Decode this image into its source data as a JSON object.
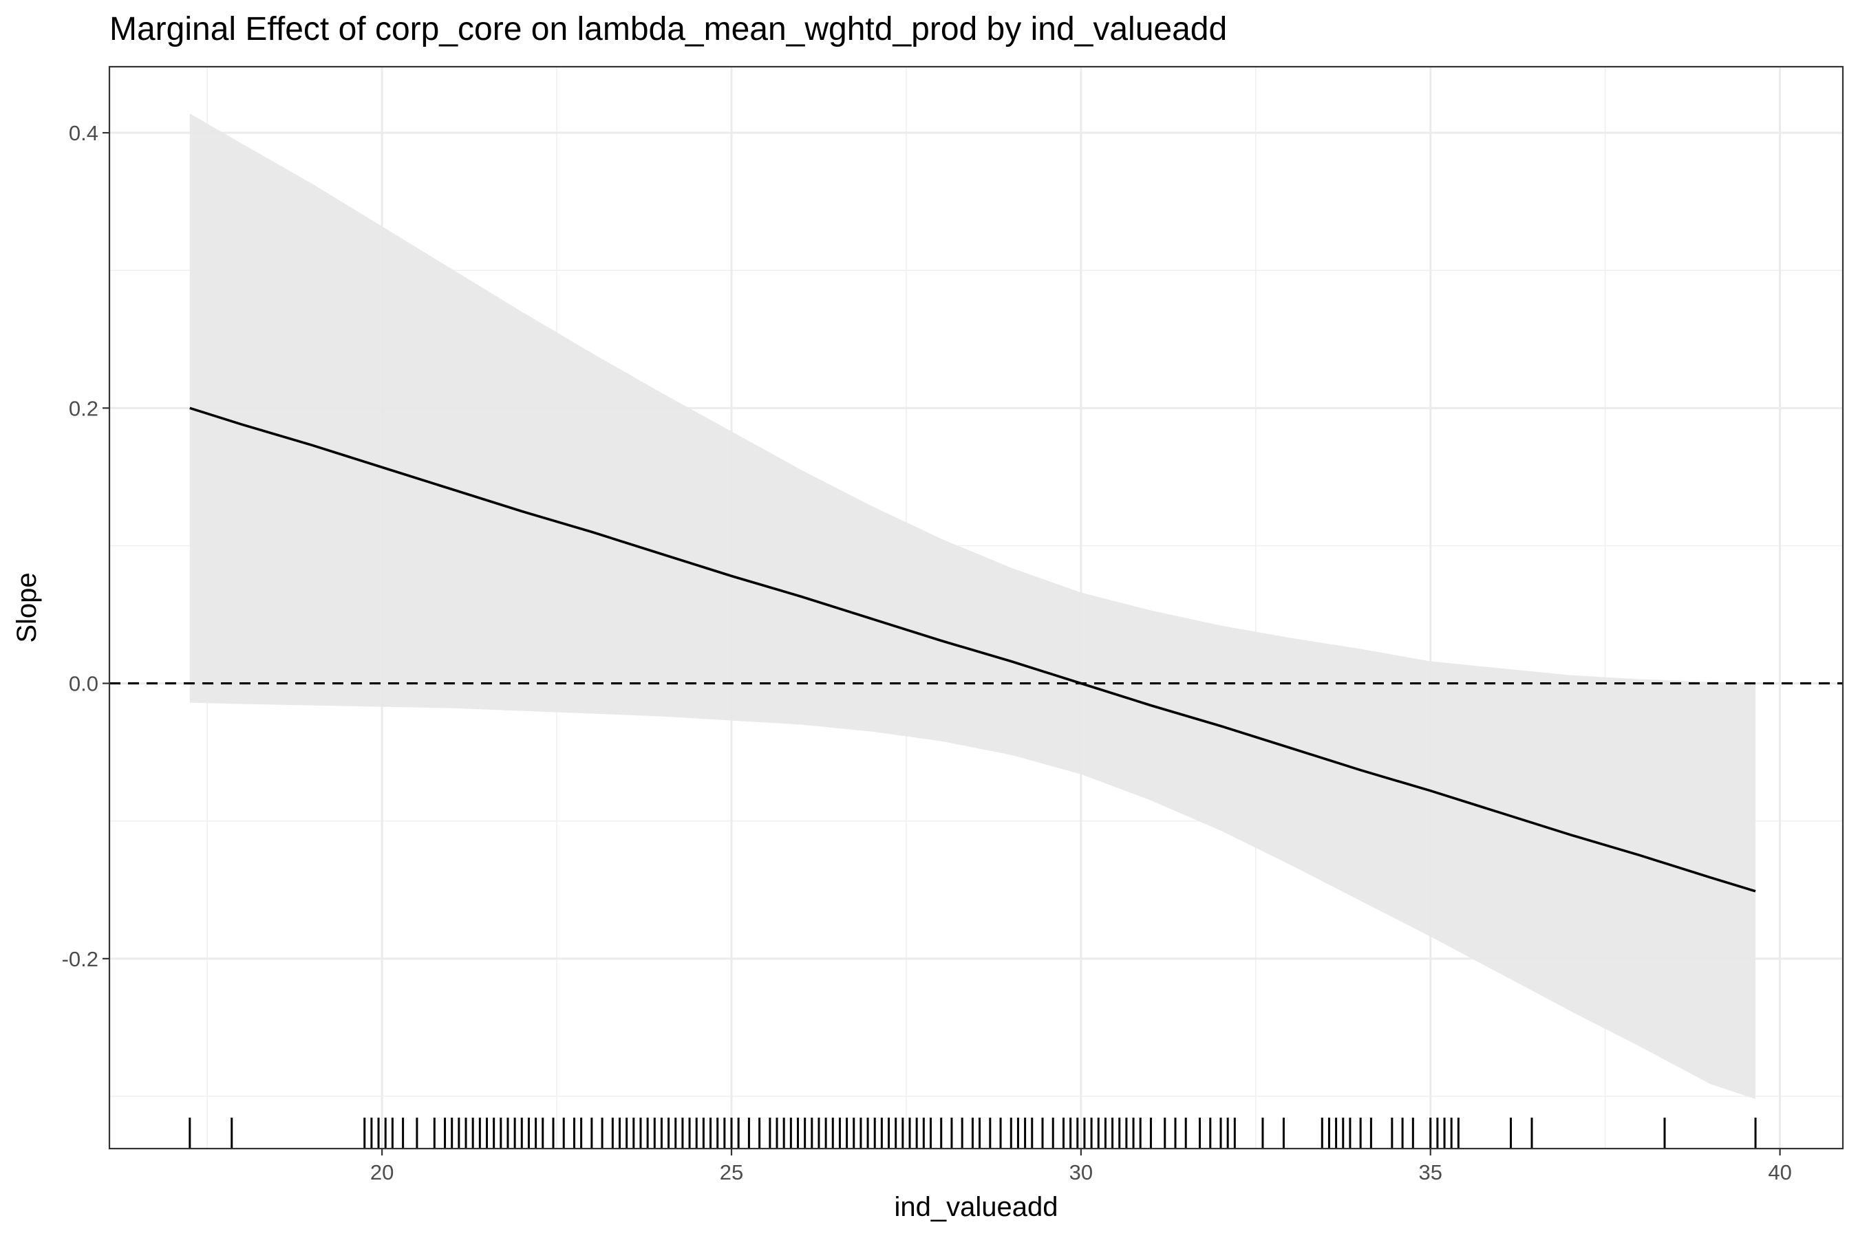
{
  "chart_data": {
    "type": "line",
    "title": "Marginal Effect of corp_core on lambda_mean_wghtd_prod by ind_valueadd",
    "xlabel": "ind_valueadd",
    "ylabel": "Slope",
    "xlim": [
      16.1,
      40.9
    ],
    "ylim": [
      -0.338,
      0.448
    ],
    "x_ticks": [
      20,
      25,
      30,
      35,
      40
    ],
    "x_tick_labels": [
      "20",
      "25",
      "30",
      "35",
      "40"
    ],
    "y_ticks": [
      -0.2,
      0.0,
      0.2,
      0.4
    ],
    "y_tick_labels": [
      "-0.2",
      "0.0",
      "0.2",
      "0.4"
    ],
    "grid": true,
    "reference_line": {
      "y": 0,
      "style": "dashed",
      "color": "#000000"
    },
    "series": [
      {
        "x": [
          17.25,
          18,
          19,
          20,
          21,
          22,
          23,
          24,
          25,
          26,
          27,
          28,
          29,
          30,
          31,
          32,
          33,
          34,
          35,
          36,
          37,
          38,
          39,
          39.65
        ],
        "values": [
          0.2,
          0.188,
          0.173,
          0.157,
          0.141,
          0.125,
          0.11,
          0.094,
          0.078,
          0.063,
          0.047,
          0.031,
          0.016,
          0.0,
          -0.016,
          -0.031,
          -0.047,
          -0.063,
          -0.078,
          -0.094,
          -0.11,
          -0.125,
          -0.141,
          -0.151
        ],
        "lower": [
          -0.014,
          -0.015,
          -0.016,
          -0.017,
          -0.018,
          -0.02,
          -0.022,
          -0.024,
          -0.027,
          -0.03,
          -0.035,
          -0.042,
          -0.052,
          -0.066,
          -0.085,
          -0.107,
          -0.132,
          -0.158,
          -0.184,
          -0.211,
          -0.238,
          -0.264,
          -0.291,
          -0.302
        ],
        "upper": [
          0.414,
          0.392,
          0.363,
          0.332,
          0.301,
          0.27,
          0.24,
          0.211,
          0.183,
          0.155,
          0.129,
          0.105,
          0.084,
          0.066,
          0.053,
          0.042,
          0.033,
          0.025,
          0.016,
          0.011,
          0.006,
          0.003,
          0.001,
          0.0
        ],
        "color": "#000000",
        "ribbon_color": "#e8e8e8"
      }
    ],
    "rug_x": [
      17.25,
      17.85,
      19.75,
      19.85,
      19.95,
      20.05,
      20.15,
      20.3,
      20.5,
      20.75,
      20.9,
      21.0,
      21.1,
      21.2,
      21.3,
      21.4,
      21.5,
      21.6,
      21.7,
      21.8,
      21.9,
      22.0,
      22.1,
      22.2,
      22.3,
      22.45,
      22.6,
      22.75,
      22.85,
      23.0,
      23.15,
      23.3,
      23.4,
      23.5,
      23.6,
      23.7,
      23.8,
      23.9,
      24.0,
      24.1,
      24.2,
      24.3,
      24.4,
      24.5,
      24.6,
      24.7,
      24.8,
      24.9,
      25.0,
      25.1,
      25.25,
      25.4,
      25.55,
      25.65,
      25.75,
      25.85,
      25.95,
      26.05,
      26.15,
      26.25,
      26.35,
      26.45,
      26.55,
      26.65,
      26.75,
      26.85,
      26.95,
      27.05,
      27.15,
      27.25,
      27.35,
      27.45,
      27.55,
      27.65,
      27.75,
      27.85,
      28.0,
      28.15,
      28.3,
      28.45,
      28.55,
      28.7,
      28.85,
      29.0,
      29.1,
      29.2,
      29.3,
      29.45,
      29.6,
      29.75,
      29.85,
      29.95,
      30.05,
      30.15,
      30.25,
      30.35,
      30.45,
      30.55,
      30.65,
      30.75,
      30.85,
      31.0,
      31.2,
      31.35,
      31.5,
      31.7,
      31.85,
      32.0,
      32.1,
      32.2,
      32.6,
      32.9,
      33.45,
      33.55,
      33.65,
      33.75,
      33.85,
      34.0,
      34.15,
      34.45,
      34.6,
      34.75,
      35.0,
      35.1,
      35.2,
      35.3,
      35.4,
      36.15,
      36.45,
      38.35,
      39.65
    ]
  }
}
